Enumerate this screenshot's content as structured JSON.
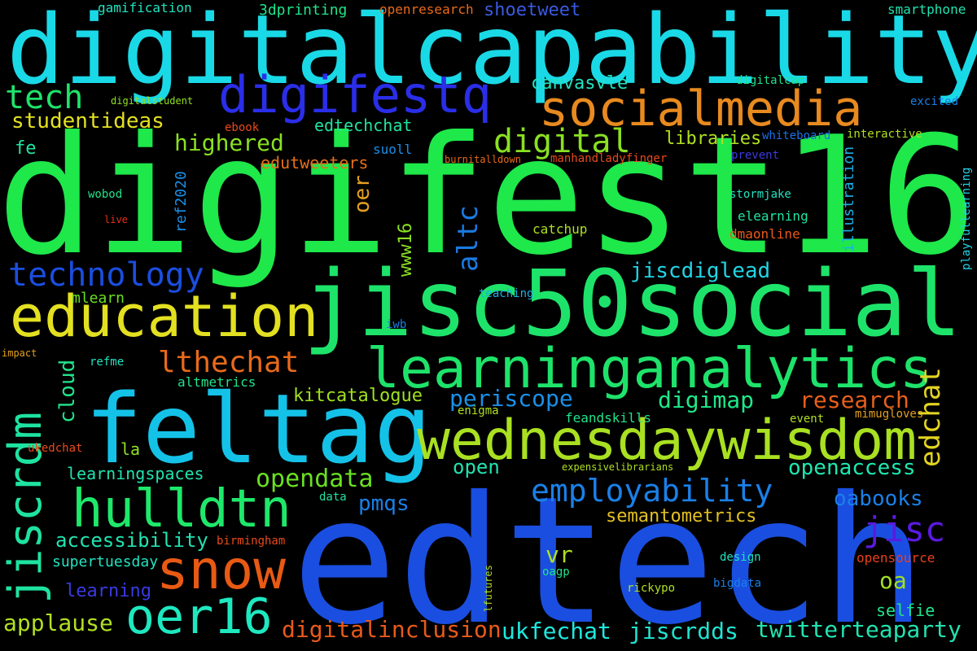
{
  "words": [
    {
      "text": "digifest16",
      "color": "#1ee84a"
    },
    {
      "text": "edtech",
      "color": "#1a4ee0"
    },
    {
      "text": "digitalcapability",
      "color": "#1ad9e6"
    },
    {
      "text": "jisc50social",
      "color": "#1ee36a"
    },
    {
      "text": "feltag",
      "color": "#14c2e8"
    },
    {
      "text": "wednesdaywisdom",
      "color": "#a9e021"
    },
    {
      "text": "learninganalytics",
      "color": "#1ee36a"
    },
    {
      "text": "socialmedia",
      "color": "#e88a1f"
    },
    {
      "text": "education",
      "color": "#e3e021"
    },
    {
      "text": "digifestq",
      "color": "#2a2ee8"
    },
    {
      "text": "snow",
      "color": "#e85a14"
    },
    {
      "text": "hulldtn",
      "color": "#1ee86a"
    },
    {
      "text": "oer16",
      "color": "#1ee8c0"
    },
    {
      "text": "jiscrdm",
      "color": "#1ee3a0"
    },
    {
      "text": "technology",
      "color": "#1a4ee0"
    },
    {
      "text": "employability",
      "color": "#1a80e8"
    },
    {
      "text": "digital",
      "color": "#8ae021"
    },
    {
      "text": "tech",
      "color": "#1ee36a"
    },
    {
      "text": "lthechat",
      "color": "#e86a1a"
    },
    {
      "text": "jisc",
      "color": "#5a1ae0"
    },
    {
      "text": "edchat",
      "color": "#e3d421"
    },
    {
      "text": "altc",
      "color": "#1a7ae0"
    },
    {
      "text": "research",
      "color": "#e8601a"
    },
    {
      "text": "periscope",
      "color": "#1a90e8"
    },
    {
      "text": "digimap",
      "color": "#1ee88a"
    },
    {
      "text": "openaccess",
      "color": "#1ee8b0"
    },
    {
      "text": "opendata",
      "color": "#6ae021"
    },
    {
      "text": "digitalinclusion",
      "color": "#e85a1a"
    },
    {
      "text": "twitterteaparty",
      "color": "#21e3b0"
    },
    {
      "text": "ukfechat",
      "color": "#1ee8e0"
    },
    {
      "text": "jiscrdds",
      "color": "#21e3d0"
    },
    {
      "text": "applause",
      "color": "#b0e021"
    },
    {
      "text": "highered",
      "color": "#8ae021"
    },
    {
      "text": "studentideas",
      "color": "#e3e021"
    },
    {
      "text": "jiscdiglead",
      "color": "#21d4e3"
    },
    {
      "text": "oabooks",
      "color": "#1a80e8"
    },
    {
      "text": "accessibility",
      "color": "#21e3b0"
    },
    {
      "text": "semantometrics",
      "color": "#e3c021"
    },
    {
      "text": "oer",
      "color": "#e3a021"
    },
    {
      "text": "www16",
      "color": "#8ae021"
    },
    {
      "text": "cloud",
      "color": "#21e38a"
    },
    {
      "text": "vr",
      "color": "#b0e021"
    },
    {
      "text": "oa",
      "color": "#a0e021"
    },
    {
      "text": "pmqs",
      "color": "#1a80e8"
    },
    {
      "text": "open",
      "color": "#21e3b0"
    },
    {
      "text": "kitcatalogue",
      "color": "#a0e021"
    },
    {
      "text": "edtechchat",
      "color": "#21e3a0"
    },
    {
      "text": "edutweeters",
      "color": "#e8701a"
    },
    {
      "text": "canvasvle",
      "color": "#21e3c0"
    },
    {
      "text": "libraries",
      "color": "#b0e021"
    },
    {
      "text": "shoetweet",
      "color": "#3a5ae0"
    },
    {
      "text": "learningspaces",
      "color": "#21e3b0"
    },
    {
      "text": "learning",
      "color": "#3a3ae0"
    },
    {
      "text": "supertuesday",
      "color": "#21e3c0"
    },
    {
      "text": "selfie",
      "color": "#21e38a"
    },
    {
      "text": "ref2020",
      "color": "#1a90e8"
    },
    {
      "text": "illustration",
      "color": "#1ab0e8"
    },
    {
      "text": "fe",
      "color": "#21e3a0"
    },
    {
      "text": "mlearn",
      "color": "#6ae021"
    },
    {
      "text": "la",
      "color": "#90e021"
    },
    {
      "text": "gamification",
      "color": "#21e3c0"
    },
    {
      "text": "3dprinting",
      "color": "#21e38a"
    },
    {
      "text": "openresearch",
      "color": "#e86a1a"
    },
    {
      "text": "smartphone",
      "color": "#21e3b0"
    },
    {
      "text": "digitalcap",
      "color": "#21e38a"
    },
    {
      "text": "excited",
      "color": "#1a80e8"
    },
    {
      "text": "digitalstudent",
      "color": "#90e021"
    },
    {
      "text": "ebook",
      "color": "#e84a1a"
    },
    {
      "text": "whiteboard",
      "color": "#1a70e8"
    },
    {
      "text": "interactive",
      "color": "#b0e021"
    },
    {
      "text": "suoll",
      "color": "#1a90e8"
    },
    {
      "text": "burnitalldown",
      "color": "#e86a1a"
    },
    {
      "text": "manhandladyfinger",
      "color": "#e84a1a"
    },
    {
      "text": "prevent",
      "color": "#3a3ae0"
    },
    {
      "text": "playfullearning",
      "color": "#21d4e3"
    },
    {
      "text": "wobod",
      "color": "#21e38a"
    },
    {
      "text": "stormjake",
      "color": "#21e3c0"
    },
    {
      "text": "elearning",
      "color": "#21e3a0"
    },
    {
      "text": "live",
      "color": "#e8301a"
    },
    {
      "text": "catchup",
      "color": "#b0e021"
    },
    {
      "text": "dmaonline",
      "color": "#e85a1a"
    },
    {
      "text": "teaching",
      "color": "#1ab0e8"
    },
    {
      "text": "iwb",
      "color": "#1a80e8"
    },
    {
      "text": "impact",
      "color": "#e3a021"
    },
    {
      "text": "refme",
      "color": "#21e3c0"
    },
    {
      "text": "altmetrics",
      "color": "#21e38a"
    },
    {
      "text": "enigma",
      "color": "#b0e021"
    },
    {
      "text": "feandskills",
      "color": "#21e38a"
    },
    {
      "text": "event",
      "color": "#b0e021"
    },
    {
      "text": "mimugloves",
      "color": "#e3a021"
    },
    {
      "text": "ukedchat",
      "color": "#e84a1a"
    },
    {
      "text": "expensivelibrarians",
      "color": "#b0e021"
    },
    {
      "text": "data",
      "color": "#21e3a0"
    },
    {
      "text": "birmingham",
      "color": "#e84a1a"
    },
    {
      "text": "opensource",
      "color": "#e8401a"
    },
    {
      "text": "design",
      "color": "#21e3c0"
    },
    {
      "text": "oagp",
      "color": "#21e38a"
    },
    {
      "text": "lfutures",
      "color": "#b0e021"
    },
    {
      "text": "rickypo",
      "color": "#b0e021"
    },
    {
      "text": "bigdata",
      "color": "#1a80e8"
    }
  ]
}
